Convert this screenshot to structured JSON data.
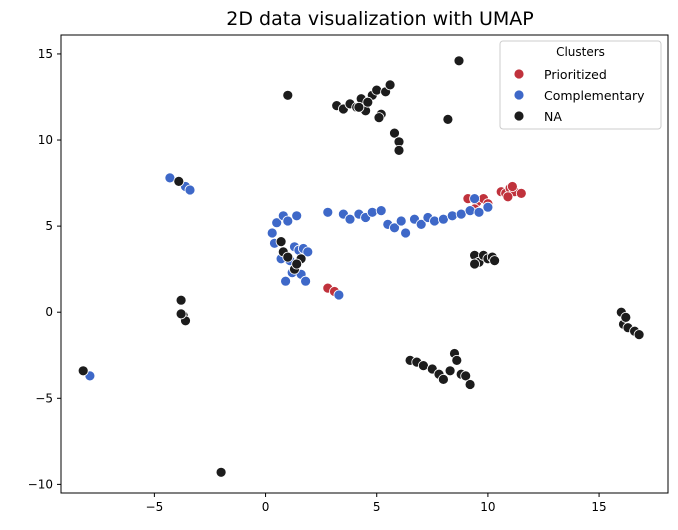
{
  "chart_data": {
    "type": "scatter",
    "title": "2D data visualization with UMAP",
    "xlabel": "",
    "ylabel": "",
    "xlim": [
      -9.2,
      18.1
    ],
    "ylim": [
      -10.5,
      16.1
    ],
    "xticks": [
      -5,
      0,
      5,
      10,
      15
    ],
    "yticks": [
      -10,
      -5,
      0,
      5,
      10,
      15
    ],
    "grid": false,
    "legend": {
      "title": "Clusters",
      "placement": "top-right"
    },
    "series": [
      {
        "name": "Prioritized",
        "color": "#c0323c",
        "points": [
          [
            2.8,
            1.4
          ],
          [
            3.1,
            1.2
          ],
          [
            9.1,
            6.6
          ],
          [
            9.5,
            6.4
          ],
          [
            9.8,
            6.6
          ],
          [
            10.0,
            6.3
          ],
          [
            9.4,
            6.0
          ],
          [
            10.6,
            7.0
          ],
          [
            10.8,
            6.9
          ],
          [
            11.0,
            7.2
          ],
          [
            11.2,
            7.0
          ],
          [
            11.5,
            6.9
          ],
          [
            10.9,
            6.7
          ],
          [
            11.1,
            7.3
          ]
        ]
      },
      {
        "name": "Complementary",
        "color": "#3e68c8",
        "points": [
          [
            -4.3,
            7.8
          ],
          [
            -3.6,
            7.3
          ],
          [
            -3.4,
            7.1
          ],
          [
            -7.9,
            -3.7
          ],
          [
            0.3,
            4.6
          ],
          [
            0.5,
            5.2
          ],
          [
            0.4,
            4.0
          ],
          [
            0.7,
            3.1
          ],
          [
            0.8,
            5.6
          ],
          [
            1.0,
            5.3
          ],
          [
            1.4,
            5.6
          ],
          [
            1.1,
            3.0
          ],
          [
            1.3,
            3.8
          ],
          [
            1.5,
            3.6
          ],
          [
            1.7,
            3.7
          ],
          [
            1.9,
            3.5
          ],
          [
            1.2,
            2.3
          ],
          [
            1.6,
            2.2
          ],
          [
            0.9,
            1.8
          ],
          [
            1.8,
            1.8
          ],
          [
            3.3,
            1.0
          ],
          [
            2.8,
            5.8
          ],
          [
            3.5,
            5.7
          ],
          [
            3.8,
            5.4
          ],
          [
            4.2,
            5.7
          ],
          [
            4.5,
            5.5
          ],
          [
            4.8,
            5.8
          ],
          [
            5.2,
            5.9
          ],
          [
            5.5,
            5.1
          ],
          [
            5.8,
            4.9
          ],
          [
            6.1,
            5.3
          ],
          [
            6.3,
            4.6
          ],
          [
            6.7,
            5.4
          ],
          [
            7.0,
            5.1
          ],
          [
            7.3,
            5.5
          ],
          [
            7.6,
            5.3
          ],
          [
            8.0,
            5.4
          ],
          [
            8.4,
            5.6
          ],
          [
            8.8,
            5.7
          ],
          [
            9.2,
            5.9
          ],
          [
            9.6,
            5.8
          ],
          [
            10.0,
            6.1
          ],
          [
            9.4,
            6.6
          ]
        ]
      },
      {
        "name": "NA",
        "color": "#1c1c1c",
        "points": [
          [
            -8.2,
            -3.4
          ],
          [
            -3.9,
            7.6
          ],
          [
            -3.8,
            0.7
          ],
          [
            -3.7,
            -0.2
          ],
          [
            -3.6,
            -0.5
          ],
          [
            -3.8,
            -0.1
          ],
          [
            -2.0,
            -9.3
          ],
          [
            1.0,
            12.6
          ],
          [
            3.2,
            12.0
          ],
          [
            3.5,
            11.8
          ],
          [
            3.8,
            12.1
          ],
          [
            4.1,
            11.9
          ],
          [
            4.3,
            12.4
          ],
          [
            4.5,
            11.7
          ],
          [
            4.8,
            12.6
          ],
          [
            5.0,
            12.9
          ],
          [
            5.2,
            11.5
          ],
          [
            5.4,
            12.8
          ],
          [
            5.6,
            13.2
          ],
          [
            4.2,
            11.9
          ],
          [
            4.6,
            12.2
          ],
          [
            5.1,
            11.3
          ],
          [
            5.8,
            10.4
          ],
          [
            6.0,
            9.9
          ],
          [
            6.0,
            9.4
          ],
          [
            8.7,
            14.6
          ],
          [
            8.2,
            11.2
          ],
          [
            0.7,
            4.1
          ],
          [
            0.8,
            3.5
          ],
          [
            1.0,
            3.2
          ],
          [
            1.3,
            2.5
          ],
          [
            1.6,
            3.1
          ],
          [
            1.4,
            2.8
          ],
          [
            9.4,
            3.3
          ],
          [
            9.6,
            2.9
          ],
          [
            9.8,
            3.3
          ],
          [
            10.0,
            3.1
          ],
          [
            10.2,
            3.2
          ],
          [
            10.3,
            3.0
          ],
          [
            9.4,
            2.8
          ],
          [
            6.5,
            -2.8
          ],
          [
            6.8,
            -2.9
          ],
          [
            7.1,
            -3.1
          ],
          [
            7.5,
            -3.3
          ],
          [
            7.8,
            -3.6
          ],
          [
            8.0,
            -3.9
          ],
          [
            8.3,
            -3.4
          ],
          [
            8.5,
            -2.4
          ],
          [
            8.6,
            -2.8
          ],
          [
            8.8,
            -3.6
          ],
          [
            9.0,
            -3.7
          ],
          [
            9.2,
            -4.2
          ],
          [
            16.0,
            0.0
          ],
          [
            16.1,
            -0.7
          ],
          [
            16.3,
            -0.9
          ],
          [
            16.6,
            -1.1
          ],
          [
            16.8,
            -1.3
          ],
          [
            16.2,
            -0.3
          ]
        ]
      }
    ]
  }
}
